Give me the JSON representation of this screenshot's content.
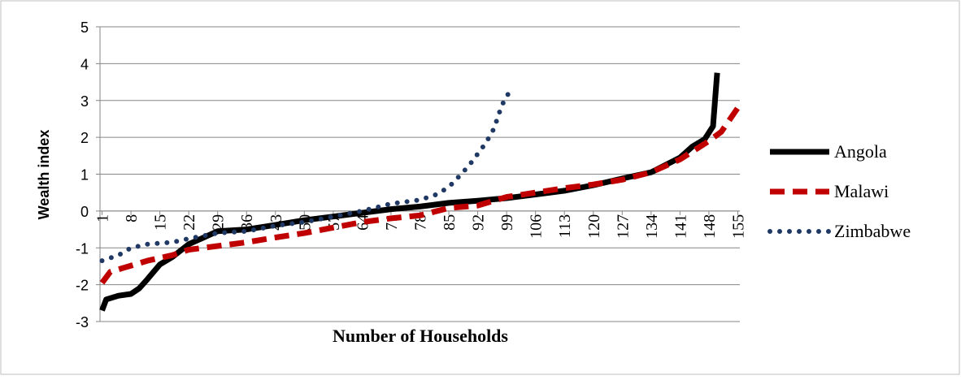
{
  "chart_data": {
    "type": "line",
    "y_label": "Wealth index",
    "x_label": "Number of Households",
    "xlim": [
      0.5,
      155.5
    ],
    "xticks": [
      1,
      8,
      15,
      22,
      29,
      36,
      43,
      50,
      57,
      64,
      71,
      78,
      85,
      92,
      99,
      106,
      113,
      120,
      127,
      134,
      141,
      148,
      155
    ],
    "ylim": [
      -3,
      5
    ],
    "yticks": [
      -3,
      -2,
      -1,
      0,
      1,
      2,
      3,
      4,
      5
    ],
    "grid": true,
    "legend": "right",
    "series": [
      {
        "name": "Angola",
        "color": "#000000",
        "line_style": "solid",
        "x": [
          1,
          2,
          5,
          8,
          10,
          12,
          15,
          18,
          22,
          25,
          29,
          36,
          43,
          50,
          57,
          64,
          71,
          78,
          85,
          92,
          99,
          106,
          113,
          120,
          127,
          134,
          141,
          144,
          147,
          149,
          150
        ],
        "values": [
          -2.7,
          -2.4,
          -2.3,
          -2.25,
          -2.1,
          -1.85,
          -1.45,
          -1.25,
          -0.9,
          -0.75,
          -0.55,
          -0.5,
          -0.38,
          -0.25,
          -0.15,
          -0.05,
          0.05,
          0.12,
          0.22,
          0.28,
          0.35,
          0.45,
          0.55,
          0.7,
          0.88,
          1.05,
          1.45,
          1.75,
          1.95,
          2.3,
          3.75
        ]
      },
      {
        "name": "Malawi",
        "color": "#c00000",
        "line_style": "dashed",
        "x": [
          1,
          3,
          6,
          12,
          18,
          22,
          29,
          36,
          43,
          50,
          57,
          64,
          71,
          78,
          85,
          92,
          99,
          106,
          113,
          120,
          127,
          134,
          141,
          148,
          151,
          155
        ],
        "values": [
          -1.95,
          -1.65,
          -1.55,
          -1.35,
          -1.2,
          -1.05,
          -0.95,
          -0.85,
          -0.72,
          -0.6,
          -0.45,
          -0.3,
          -0.2,
          -0.12,
          0.08,
          0.15,
          0.38,
          0.5,
          0.62,
          0.72,
          0.85,
          1.05,
          1.4,
          1.9,
          2.15,
          2.8
        ]
      },
      {
        "name": "Zimbabwe",
        "color": "#1f3864",
        "line_style": "dotted",
        "x": [
          1,
          5,
          8,
          12,
          18,
          22,
          29,
          36,
          43,
          50,
          57,
          64,
          71,
          78,
          82,
          85,
          88,
          90,
          92,
          94,
          96,
          97,
          98,
          100
        ],
        "values": [
          -1.35,
          -1.2,
          -1.0,
          -0.9,
          -0.85,
          -0.75,
          -0.6,
          -0.55,
          -0.4,
          -0.3,
          -0.15,
          0.0,
          0.2,
          0.3,
          0.45,
          0.65,
          1.0,
          1.25,
          1.55,
          1.85,
          2.25,
          2.6,
          2.9,
          3.3
        ]
      }
    ]
  }
}
